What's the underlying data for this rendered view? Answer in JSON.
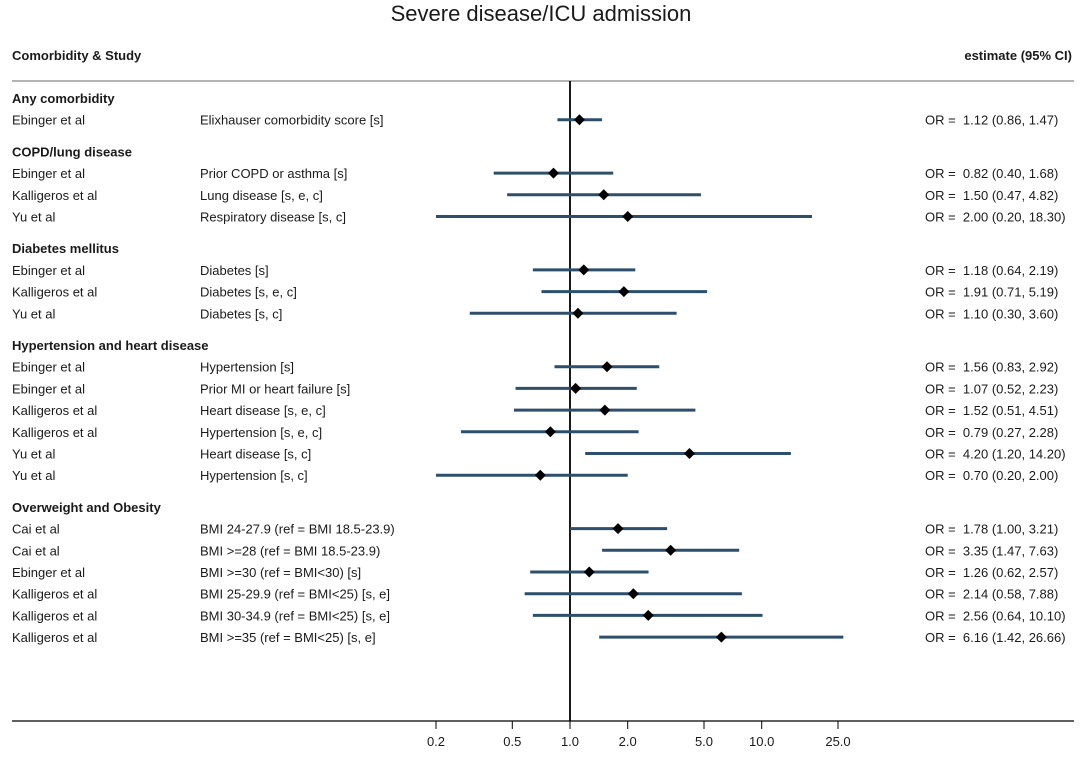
{
  "chart_data": {
    "type": "forest",
    "title": "Severe disease/ICU admission",
    "header_left": "Comorbidity & Study",
    "header_right": "estimate (95% CI)",
    "x_scale": "log",
    "xlim": [
      0.2,
      25
    ],
    "reference_line": 1.0,
    "x_ticks": [
      0.2,
      0.5,
      1.0,
      2.0,
      5.0,
      10.0,
      25.0
    ],
    "x_tick_labels": [
      "0.2",
      "0.5",
      "1.0",
      "2.0",
      "5.0",
      "10.0",
      "25.0"
    ],
    "colors": {
      "ci": "#2e4f6b",
      "point": "#000000",
      "rule": "#b3b3b3",
      "axis": "#000000"
    },
    "groups": [
      {
        "name": "Any comorbidity",
        "rows": [
          {
            "study": "Ebinger et al",
            "measure": "Elixhauser comorbidity score [s]",
            "est": 1.12,
            "lo": 0.86,
            "hi": 1.47,
            "label": "OR =  1.12 (0.86, 1.47)"
          }
        ]
      },
      {
        "name": "COPD/lung disease",
        "rows": [
          {
            "study": "Ebinger et al",
            "measure": "Prior COPD or asthma [s]",
            "est": 0.82,
            "lo": 0.4,
            "hi": 1.68,
            "label": "OR =  0.82 (0.40, 1.68)"
          },
          {
            "study": "Kalligeros et al",
            "measure": "Lung disease [s, e, c]",
            "est": 1.5,
            "lo": 0.47,
            "hi": 4.82,
            "label": "OR =  1.50 (0.47, 4.82)"
          },
          {
            "study": "Yu et al",
            "measure": "Respiratory disease [s, c]",
            "est": 2.0,
            "lo": 0.2,
            "hi": 18.3,
            "label": "OR =  2.00 (0.20, 18.30)"
          }
        ]
      },
      {
        "name": "Diabetes mellitus",
        "rows": [
          {
            "study": "Ebinger et al",
            "measure": "Diabetes [s]",
            "est": 1.18,
            "lo": 0.64,
            "hi": 2.19,
            "label": "OR =  1.18 (0.64, 2.19)"
          },
          {
            "study": "Kalligeros et al",
            "measure": "Diabetes [s, e, c]",
            "est": 1.91,
            "lo": 0.71,
            "hi": 5.19,
            "label": "OR =  1.91 (0.71, 5.19)"
          },
          {
            "study": "Yu et al",
            "measure": "Diabetes [s, c]",
            "est": 1.1,
            "lo": 0.3,
            "hi": 3.6,
            "label": "OR =  1.10 (0.30, 3.60)"
          }
        ]
      },
      {
        "name": "Hypertension and heart disease",
        "rows": [
          {
            "study": "Ebinger et al",
            "measure": "Hypertension [s]",
            "est": 1.56,
            "lo": 0.83,
            "hi": 2.92,
            "label": "OR =  1.56 (0.83, 2.92)"
          },
          {
            "study": "Ebinger et al",
            "measure": "Prior MI or heart failure [s]",
            "est": 1.07,
            "lo": 0.52,
            "hi": 2.23,
            "label": "OR =  1.07 (0.52, 2.23)"
          },
          {
            "study": "Kalligeros et al",
            "measure": "Heart disease [s, e, c]",
            "est": 1.52,
            "lo": 0.51,
            "hi": 4.51,
            "label": "OR =  1.52 (0.51, 4.51)"
          },
          {
            "study": "Kalligeros et al",
            "measure": "Hypertension [s, e, c]",
            "est": 0.79,
            "lo": 0.27,
            "hi": 2.28,
            "label": "OR =  0.79 (0.27, 2.28)"
          },
          {
            "study": "Yu et al",
            "measure": "Heart disease [s, c]",
            "est": 4.2,
            "lo": 1.2,
            "hi": 14.2,
            "label": "OR =  4.20 (1.20, 14.20)"
          },
          {
            "study": "Yu et al",
            "measure": "Hypertension [s, c]",
            "est": 0.7,
            "lo": 0.2,
            "hi": 2.0,
            "label": "OR =  0.70 (0.20, 2.00)"
          }
        ]
      },
      {
        "name": "Overweight and Obesity",
        "rows": [
          {
            "study": "Cai et al",
            "measure": "BMI 24-27.9 (ref = BMI 18.5-23.9)",
            "est": 1.78,
            "lo": 1.0,
            "hi": 3.21,
            "label": "OR =  1.78 (1.00, 3.21)"
          },
          {
            "study": "Cai et al",
            "measure": "BMI >=28 (ref = BMI 18.5-23.9)",
            "est": 3.35,
            "lo": 1.47,
            "hi": 7.63,
            "label": "OR =  3.35 (1.47, 7.63)"
          },
          {
            "study": "Ebinger et al",
            "measure": "BMI >=30 (ref = BMI<30) [s]",
            "est": 1.26,
            "lo": 0.62,
            "hi": 2.57,
            "label": "OR =  1.26 (0.62, 2.57)"
          },
          {
            "study": "Kalligeros et al",
            "measure": "BMI 25-29.9 (ref = BMI<25) [s, e]",
            "est": 2.14,
            "lo": 0.58,
            "hi": 7.88,
            "label": "OR =  2.14 (0.58, 7.88)"
          },
          {
            "study": "Kalligeros et al",
            "measure": "BMI 30-34.9 (ref = BMI<25) [s, e]",
            "est": 2.56,
            "lo": 0.64,
            "hi": 10.1,
            "label": "OR =  2.56 (0.64, 10.10)"
          },
          {
            "study": "Kalligeros et al",
            "measure": "BMI >=35 (ref = BMI<25) [s, e]",
            "est": 6.16,
            "lo": 1.42,
            "hi": 26.66,
            "label": "OR =  6.16 (1.42, 26.66)"
          }
        ]
      }
    ]
  }
}
